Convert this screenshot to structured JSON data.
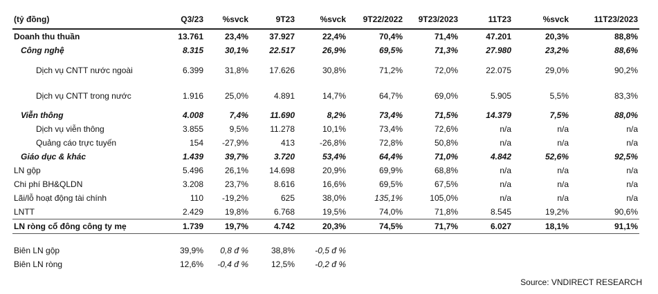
{
  "headers": [
    "(tỷ đồng)",
    "Q3/23",
    "%svck",
    "9T23",
    "%svck",
    "9T22/2022",
    "9T23/2023",
    "11T23",
    "%svck",
    "11T23/2023"
  ],
  "rows": [
    {
      "label": "Doanh thu thuần",
      "cells": [
        "13.761",
        "23,4%",
        "37.927",
        "22,4%",
        "70,4%",
        "71,4%",
        "47.201",
        "20,3%",
        "88,8%"
      ]
    },
    {
      "label": "Công nghệ",
      "cells": [
        "8.315",
        "30,1%",
        "22.517",
        "26,9%",
        "69,5%",
        "71,3%",
        "27.980",
        "23,2%",
        "88,6%"
      ]
    },
    {
      "label": "Dịch vụ CNTT nước ngoài",
      "cells": [
        "6.399",
        "31,8%",
        "17.626",
        "30,8%",
        "71,2%",
        "72,0%",
        "22.075",
        "29,0%",
        "90,2%"
      ]
    },
    {
      "label": "Dịch vụ CNTT trong nước",
      "cells": [
        "1.916",
        "25,0%",
        "4.891",
        "14,7%",
        "64,7%",
        "69,0%",
        "5.905",
        "5,5%",
        "83,3%"
      ]
    },
    {
      "label": "Viễn thông",
      "cells": [
        "4.008",
        "7,4%",
        "11.690",
        "8,2%",
        "73,4%",
        "71,5%",
        "14.379",
        "7,5%",
        "88,0%"
      ]
    },
    {
      "label": "Dịch vụ viễn thông",
      "cells": [
        "3.855",
        "9,5%",
        "11.278",
        "10,1%",
        "73,4%",
        "72,6%",
        "n/a",
        "n/a",
        "n/a"
      ]
    },
    {
      "label": "Quảng cáo trực tuyến",
      "cells": [
        "154",
        "-27,9%",
        "413",
        "-26,8%",
        "72,8%",
        "50,8%",
        "n/a",
        "n/a",
        "n/a"
      ]
    },
    {
      "label": "Giáo dục & khác",
      "cells": [
        "1.439",
        "39,7%",
        "3.720",
        "53,4%",
        "64,4%",
        "71,0%",
        "4.842",
        "52,6%",
        "92,5%"
      ]
    },
    {
      "label": "LN gộp",
      "cells": [
        "5.496",
        "26,1%",
        "14.698",
        "20,9%",
        "69,9%",
        "68,8%",
        "n/a",
        "n/a",
        "n/a"
      ]
    },
    {
      "label": "Chi phí BH&QLDN",
      "cells": [
        "3.208",
        "23,7%",
        "8.616",
        "16,6%",
        "69,5%",
        "67,5%",
        "n/a",
        "n/a",
        "n/a"
      ]
    },
    {
      "label": "Lãi/lỗ hoạt động tài chính",
      "cells": [
        "110",
        "-19,2%",
        "625",
        "38,0%",
        "135,1%",
        "105,0%",
        "n/a",
        "n/a",
        "n/a"
      ]
    },
    {
      "label": "LNTT",
      "cells": [
        "2.429",
        "19,8%",
        "6.768",
        "19,5%",
        "74,0%",
        "71,8%",
        "8.545",
        "19,2%",
        "90,6%"
      ]
    },
    {
      "label": "LN ròng cổ đông công ty mẹ",
      "cells": [
        "1.739",
        "19,7%",
        "4.742",
        "20,3%",
        "74,5%",
        "71,7%",
        "6.027",
        "18,1%",
        "91,1%"
      ]
    },
    {
      "label": "Biên LN gộp",
      "cells": [
        "39,9%",
        "0,8 đ %",
        "38,8%",
        "-0,5 đ %",
        "",
        "",
        "",
        "",
        ""
      ]
    },
    {
      "label": "Biên LN ròng",
      "cells": [
        "12,6%",
        "-0,4 đ %",
        "12,5%",
        "-0,2 đ %",
        "",
        "",
        "",
        "",
        ""
      ]
    }
  ],
  "source": "Source: VNDIRECT RESEARCH"
}
